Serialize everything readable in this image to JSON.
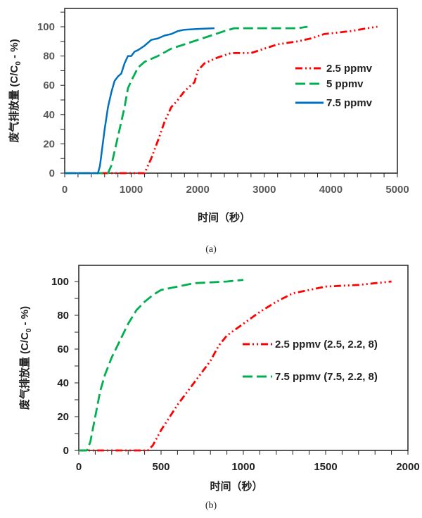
{
  "chart_data": [
    {
      "type": "line",
      "caption": "(a)",
      "xlabel": "时间（秒）",
      "ylabel": {
        "main": "废气排放量 (C/C",
        "sub": "0",
        "tail": " - %)"
      },
      "xlim": [
        0,
        5000
      ],
      "ylim": [
        0,
        100
      ],
      "xticks": [
        0,
        1000,
        2000,
        3000,
        4000,
        5000
      ],
      "yticks": [
        0,
        20,
        40,
        60,
        80,
        100
      ],
      "xtick_labels": [
        "0",
        "1000",
        "2000",
        "3000",
        "4000",
        "5000"
      ],
      "ytick_labels": [
        "0",
        "20",
        "40",
        "60",
        "80",
        "100"
      ],
      "grid": false,
      "legend_position": "right",
      "series": [
        {
          "name": "2.5 ppmv",
          "color": "#ff0000",
          "style": "dash-dot-dot",
          "points": [
            [
              0,
              0
            ],
            [
              1200,
              0
            ],
            [
              1300,
              10
            ],
            [
              1400,
              22
            ],
            [
              1500,
              35
            ],
            [
              1600,
              45
            ],
            [
              1700,
              50
            ],
            [
              1800,
              56
            ],
            [
              1900,
              60
            ],
            [
              1950,
              62
            ],
            [
              2000,
              70
            ],
            [
              2100,
              75
            ],
            [
              2200,
              77
            ],
            [
              2300,
              79
            ],
            [
              2500,
              82
            ],
            [
              2800,
              82
            ],
            [
              3000,
              85
            ],
            [
              3200,
              88
            ],
            [
              3500,
              90
            ],
            [
              3700,
              92
            ],
            [
              3900,
              95
            ],
            [
              4100,
              96
            ],
            [
              4300,
              97
            ],
            [
              4550,
              99
            ],
            [
              4700,
              100
            ]
          ]
        },
        {
          "name": "5 ppmv",
          "color": "#00b050",
          "style": "dash",
          "points": [
            [
              0,
              0
            ],
            [
              650,
              0
            ],
            [
              700,
              5
            ],
            [
              800,
              25
            ],
            [
              900,
              45
            ],
            [
              950,
              58
            ],
            [
              1000,
              63
            ],
            [
              1100,
              72
            ],
            [
              1200,
              76
            ],
            [
              1400,
              80
            ],
            [
              1600,
              85
            ],
            [
              1800,
              88
            ],
            [
              2000,
              91
            ],
            [
              2200,
              94
            ],
            [
              2400,
              97
            ],
            [
              2550,
              99
            ],
            [
              3500,
              99
            ],
            [
              3650,
              100
            ]
          ]
        },
        {
          "name": "7.5 ppmv",
          "color": "#0070c0",
          "style": "solid",
          "points": [
            [
              0,
              0
            ],
            [
              500,
              0
            ],
            [
              530,
              5
            ],
            [
              600,
              30
            ],
            [
              650,
              45
            ],
            [
              700,
              55
            ],
            [
              750,
              63
            ],
            [
              800,
              66
            ],
            [
              850,
              68
            ],
            [
              900,
              75
            ],
            [
              950,
              80
            ],
            [
              1000,
              80
            ],
            [
              1050,
              83
            ],
            [
              1100,
              84
            ],
            [
              1200,
              87
            ],
            [
              1300,
              91
            ],
            [
              1400,
              92
            ],
            [
              1500,
              94
            ],
            [
              1600,
              95
            ],
            [
              1700,
              97
            ],
            [
              1800,
              98
            ],
            [
              2000,
              98.5
            ],
            [
              2250,
              99
            ]
          ]
        }
      ]
    },
    {
      "type": "line",
      "caption": "(b)",
      "xlabel": "时间（秒）",
      "ylabel": {
        "main": "废气排放量 (C/C",
        "sub": "0",
        "tail": " - %)"
      },
      "xlim": [
        0,
        2000
      ],
      "ylim": [
        0,
        100
      ],
      "xticks": [
        0,
        500,
        1000,
        1500,
        2000
      ],
      "yticks": [
        0,
        20,
        40,
        60,
        80,
        100
      ],
      "xtick_labels": [
        "0",
        "500",
        "1000",
        "1500",
        "2000"
      ],
      "ytick_labels": [
        "0",
        "20",
        "40",
        "60",
        "80",
        "100"
      ],
      "grid": false,
      "legend_position": "right",
      "series": [
        {
          "name": "2.5 ppmv (2.5, 2.2, 8)",
          "color": "#ff0000",
          "style": "dash-dot-dot",
          "points": [
            [
              0,
              0
            ],
            [
              420,
              0
            ],
            [
              450,
              3
            ],
            [
              500,
              12
            ],
            [
              600,
              27
            ],
            [
              700,
              40
            ],
            [
              800,
              53
            ],
            [
              850,
              62
            ],
            [
              900,
              68
            ],
            [
              1000,
              75
            ],
            [
              1100,
              82
            ],
            [
              1200,
              88
            ],
            [
              1300,
              93
            ],
            [
              1400,
              95
            ],
            [
              1500,
              97
            ],
            [
              1700,
              98
            ],
            [
              1900,
              100
            ]
          ]
        },
        {
          "name": "7.5 ppmv (7.5, 2.2, 8)",
          "color": "#00b050",
          "style": "dash",
          "points": [
            [
              0,
              0
            ],
            [
              50,
              0
            ],
            [
              70,
              5
            ],
            [
              100,
              20
            ],
            [
              130,
              35
            ],
            [
              160,
              45
            ],
            [
              200,
              55
            ],
            [
              250,
              65
            ],
            [
              300,
              75
            ],
            [
              350,
              83
            ],
            [
              400,
              88
            ],
            [
              450,
              92
            ],
            [
              500,
              95
            ],
            [
              600,
              97
            ],
            [
              700,
              99
            ],
            [
              800,
              99.5
            ],
            [
              900,
              100
            ],
            [
              1000,
              101
            ]
          ]
        }
      ]
    }
  ]
}
